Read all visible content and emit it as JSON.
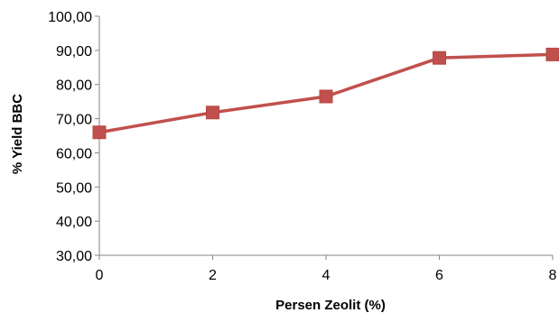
{
  "chart_data": {
    "type": "line",
    "title": "",
    "xlabel": "Persen Zeolit (%)",
    "ylabel": "% Yield BBC",
    "x": [
      0,
      2,
      4,
      6,
      8
    ],
    "x_tick_labels": [
      "0",
      "2",
      "4",
      "6",
      "8"
    ],
    "y_tick_labels": [
      "30,00",
      "40,00",
      "50,00",
      "60,00",
      "70,00",
      "80,00",
      "90,00",
      "100,00"
    ],
    "xlim": [
      0,
      8
    ],
    "ylim": [
      30,
      100
    ],
    "grid": false,
    "legend": "none",
    "series": [
      {
        "values": [
          66.0,
          71.8,
          76.5,
          87.8,
          88.8
        ],
        "color": "#c0504d",
        "marker": "square"
      }
    ]
  }
}
